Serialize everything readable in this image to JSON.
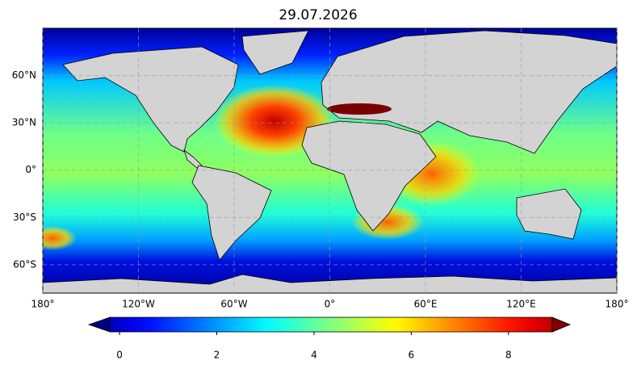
{
  "chart_data": {
    "type": "map",
    "title": "29.07.2026",
    "xlim": [
      -180,
      180
    ],
    "ylim": [
      -78,
      90
    ],
    "xticks": [
      {
        "value": -180,
        "label": "180°"
      },
      {
        "value": -120,
        "label": "120°W"
      },
      {
        "value": -60,
        "label": "60°W"
      },
      {
        "value": 0,
        "label": "0°"
      },
      {
        "value": 60,
        "label": "60°E"
      },
      {
        "value": 120,
        "label": "120°E"
      },
      {
        "value": 180,
        "label": "180°"
      }
    ],
    "yticks": [
      {
        "value": 60,
        "label": "60°N"
      },
      {
        "value": 30,
        "label": "30°N"
      },
      {
        "value": 0,
        "label": "0°"
      },
      {
        "value": -30,
        "label": "30°S"
      },
      {
        "value": -60,
        "label": "60°S"
      }
    ],
    "grid": true,
    "colorbar": {
      "colormap": "jet",
      "lim": [
        -0.2,
        8.9
      ],
      "ticks": [
        0,
        2,
        4,
        6,
        8
      ],
      "extend": "both"
    }
  }
}
